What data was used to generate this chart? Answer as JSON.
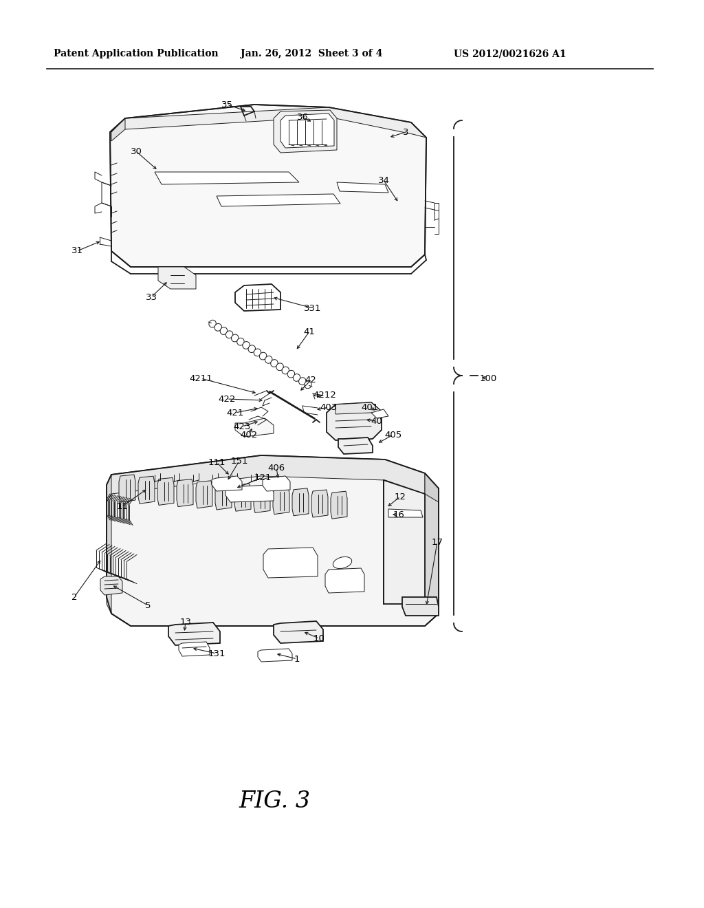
{
  "bg_color": "#ffffff",
  "header_left": "Patent Application Publication",
  "header_center": "Jan. 26, 2012  Sheet 3 of 4",
  "header_right": "US 2012/0021626 A1",
  "caption": "FIG. 3",
  "line_color": "#1a1a1a",
  "lw_main": 1.3,
  "lw_thin": 0.7,
  "lw_med": 1.0,
  "fig_width": 10.24,
  "fig_height": 13.2
}
